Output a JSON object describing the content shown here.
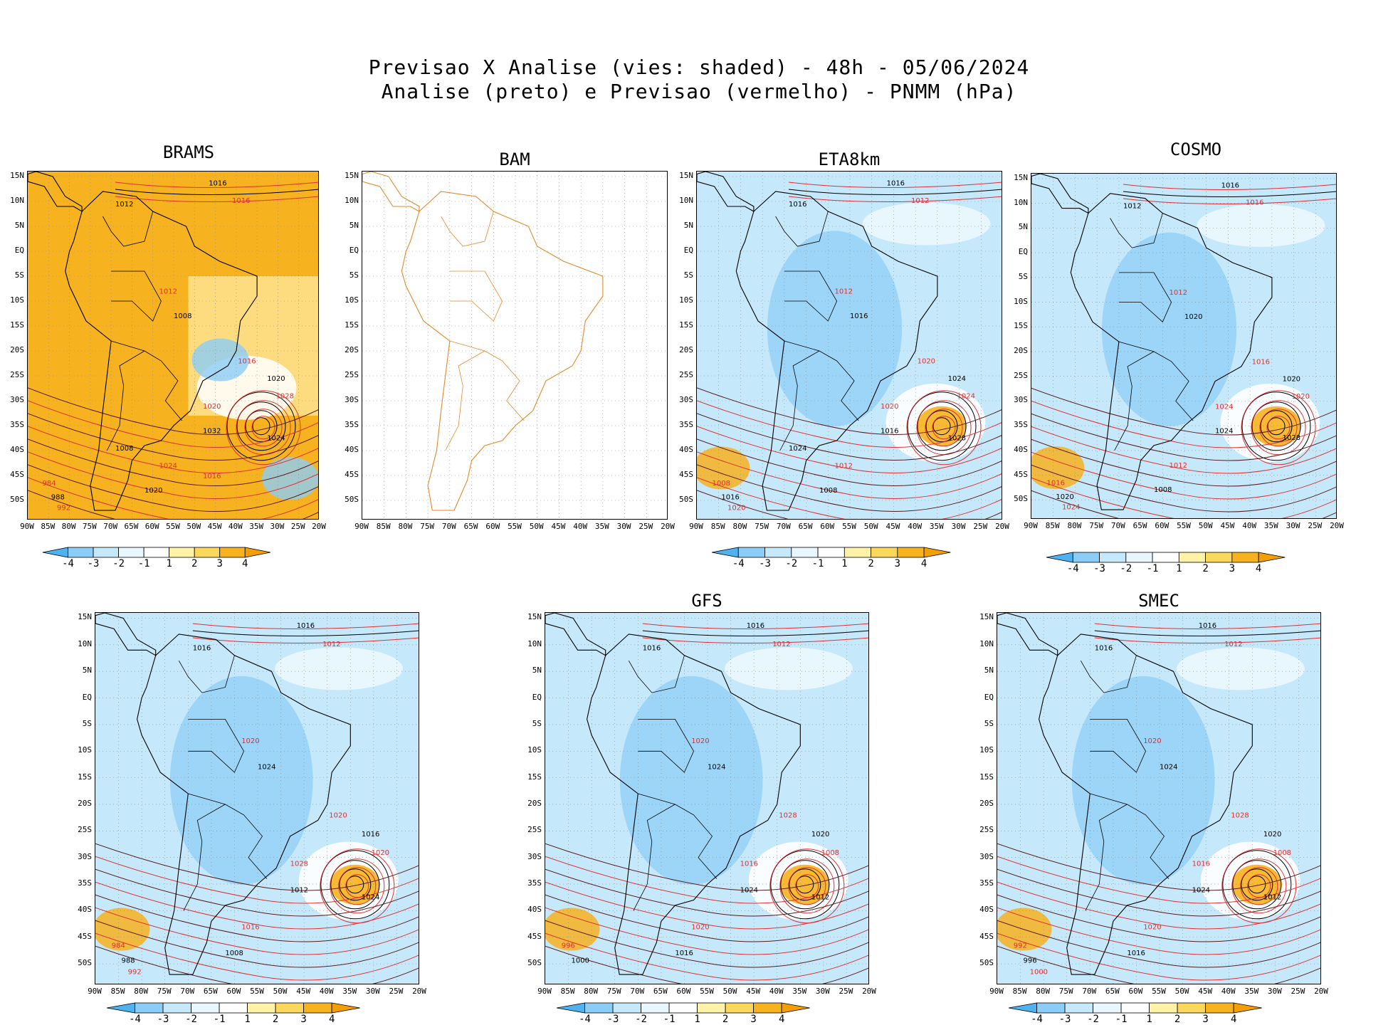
{
  "title": {
    "line1": "Previsao X Analise (vies: shaded) - 48h - 05/06/2024",
    "line2": "Analise (preto) e Previsao (vermelho) - PNMM (hPa)"
  },
  "lat_labels": [
    "15N",
    "10N",
    "5N",
    "EQ",
    "5S",
    "10S",
    "15S",
    "20S",
    "25S",
    "30S",
    "35S",
    "40S",
    "45S",
    "50S"
  ],
  "lon_labels": [
    "90W",
    "85W",
    "80W",
    "75W",
    "70W",
    "65W",
    "60W",
    "55W",
    "50W",
    "45W",
    "40W",
    "35W",
    "30W",
    "25W",
    "20W"
  ],
  "colorbar": {
    "labels": [
      "-4",
      "-3",
      "-2",
      "-1",
      "1",
      "2",
      "3",
      "4"
    ],
    "colors": [
      "#4fb2f0",
      "#8ccdf7",
      "#c6e8fb",
      "#e8f7fd",
      "#ffffff",
      "#fdf2a8",
      "#fbd85c",
      "#f7b21f",
      "#f49e00"
    ]
  },
  "panels": [
    {
      "name": "BRAMS",
      "type": "warm",
      "isobars": [
        "1016",
        "1016",
        "1012",
        "1012",
        "1008",
        "1016",
        "1020",
        "1020",
        "1024",
        "1028",
        "1032",
        "1024",
        "1020",
        "984",
        "988",
        "992",
        "1008",
        "1016"
      ]
    },
    {
      "name": "BAM",
      "type": "blank",
      "isobars": []
    },
    {
      "name": "ETA8km",
      "type": "cool",
      "isobars": [
        "1016",
        "1012",
        "1016",
        "1012",
        "1016",
        "1020",
        "1024",
        "1020",
        "1028",
        "1024",
        "1016",
        "1012",
        "1008",
        "1008",
        "1016",
        "1020",
        "1024"
      ]
    },
    {
      "name": "COSMO",
      "type": "cool",
      "isobars": [
        "1016",
        "1016",
        "1012",
        "1012",
        "1020",
        "1016",
        "1020",
        "1024",
        "1028",
        "1020",
        "1024",
        "1012",
        "1008",
        "1016",
        "1020",
        "1024"
      ]
    },
    {
      "name": "",
      "type": "cool",
      "isobars": [
        "1016",
        "1012",
        "1016",
        "1020",
        "1024",
        "1020",
        "1016",
        "1028",
        "1024",
        "1020",
        "1012",
        "1016",
        "1008",
        "984",
        "988",
        "992"
      ]
    },
    {
      "name": "GFS",
      "type": "cool",
      "isobars": [
        "1016",
        "1012",
        "1016",
        "1020",
        "1024",
        "1028",
        "1020",
        "1016",
        "1012",
        "1008",
        "1024",
        "1020",
        "1016",
        "996",
        "1000"
      ]
    },
    {
      "name": "SMEC",
      "type": "cool",
      "isobars": [
        "1016",
        "1012",
        "1016",
        "1020",
        "1024",
        "1028",
        "1020",
        "1016",
        "1012",
        "1008",
        "1024",
        "1020",
        "1016",
        "992",
        "996",
        "1000"
      ]
    }
  ]
}
